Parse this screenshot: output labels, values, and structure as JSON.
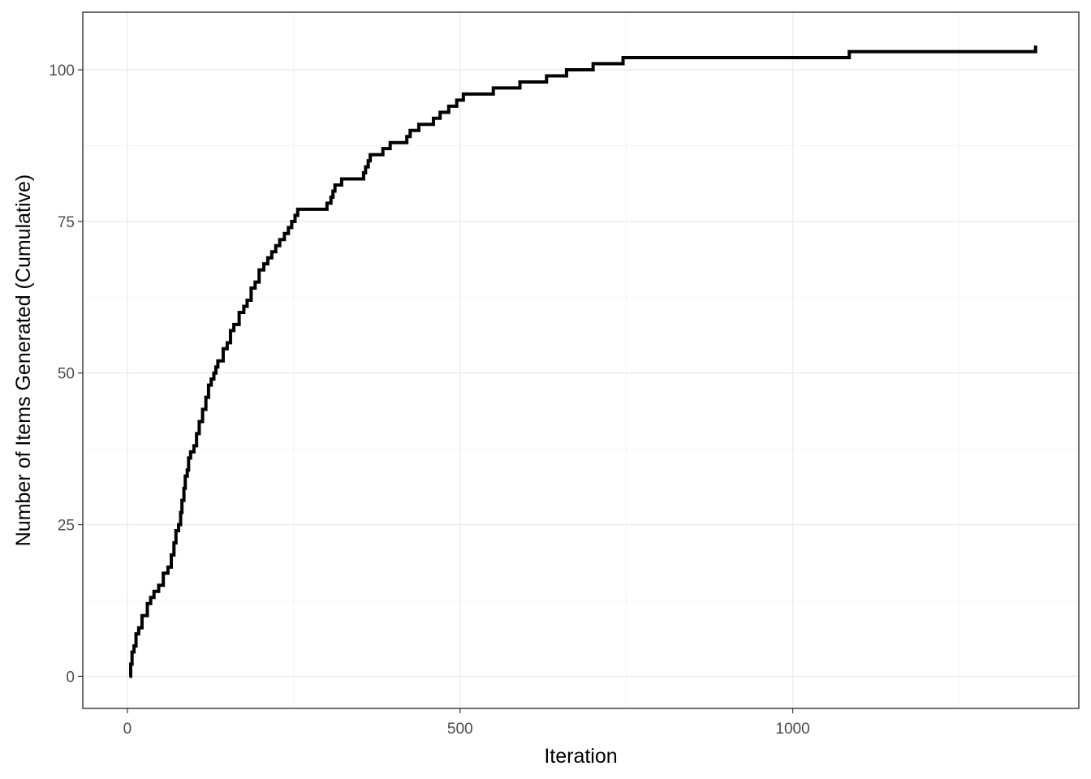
{
  "chart_data": {
    "type": "line",
    "line_style": "step",
    "xlabel": "Iteration",
    "ylabel": "Number of Items Generated (Cumulative)",
    "xlim": [
      -67,
      1430
    ],
    "ylim": [
      -5.3,
      109.5
    ],
    "x_ticks": [
      0,
      500,
      1000
    ],
    "y_ticks": [
      0,
      25,
      50,
      75,
      100
    ],
    "x_tick_labels": [
      "0",
      "500",
      "1000"
    ],
    "y_tick_labels": [
      "0",
      "25",
      "50",
      "75",
      "100"
    ],
    "grid": true,
    "legend": "none",
    "colors": {
      "line": "#000000",
      "grid_major": "#ebebeb",
      "grid_minor": "#f2f2f2",
      "panel_border": "#333333"
    },
    "series": [
      {
        "x": [
          3,
          5,
          7,
          10,
          13,
          17,
          22,
          30,
          35,
          40,
          47,
          54,
          61,
          66,
          70,
          73,
          77,
          80,
          82,
          85,
          87,
          90,
          92,
          95,
          100,
          104,
          108,
          113,
          118,
          122,
          126,
          130,
          133,
          136,
          144,
          150,
          155,
          160,
          168,
          175,
          180,
          186,
          192,
          198,
          205,
          211,
          217,
          223,
          229,
          236,
          242,
          247,
          252,
          256,
          260,
          264,
          270,
          280,
          300,
          306,
          309,
          312,
          322,
          340,
          355,
          358,
          362,
          365,
          384,
          395,
          420,
          425,
          438,
          460,
          470,
          483,
          495,
          505,
          514,
          550,
          590,
          595,
          630,
          655,
          660,
          695,
          700,
          740,
          745,
          780,
          800,
          900,
          1000,
          1080,
          1085,
          1200,
          1300,
          1360,
          1365
        ],
        "y": [
          0,
          2,
          4,
          5,
          7,
          8,
          10,
          12,
          13,
          14,
          15,
          17,
          18,
          20,
          22,
          24,
          25,
          27,
          29,
          31,
          33,
          34,
          36,
          37,
          38,
          40,
          42,
          44,
          46,
          48,
          49,
          50,
          51,
          52,
          54,
          55,
          57,
          58,
          60,
          61,
          62,
          64,
          65,
          67,
          68,
          69,
          70,
          71,
          72,
          73,
          74,
          75,
          76,
          77,
          77,
          77,
          77,
          77,
          78,
          79,
          80,
          81,
          82,
          82,
          83,
          84,
          85,
          86,
          87,
          88,
          89,
          90,
          91,
          92,
          93,
          94,
          95,
          96,
          96,
          97,
          98,
          98,
          99,
          99,
          100,
          100,
          101,
          101,
          102,
          102,
          102,
          102,
          102,
          102,
          103,
          103,
          103,
          103,
          104
        ]
      }
    ]
  }
}
